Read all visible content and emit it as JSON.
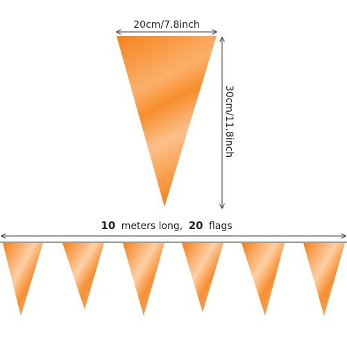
{
  "labels": {
    "width": "20cm/7.8inch",
    "height": "30cm/11.8inch",
    "length": {
      "meters": "10",
      "meters_text": "meters long,",
      "flags": "20",
      "flags_text": "flags"
    }
  }
}
